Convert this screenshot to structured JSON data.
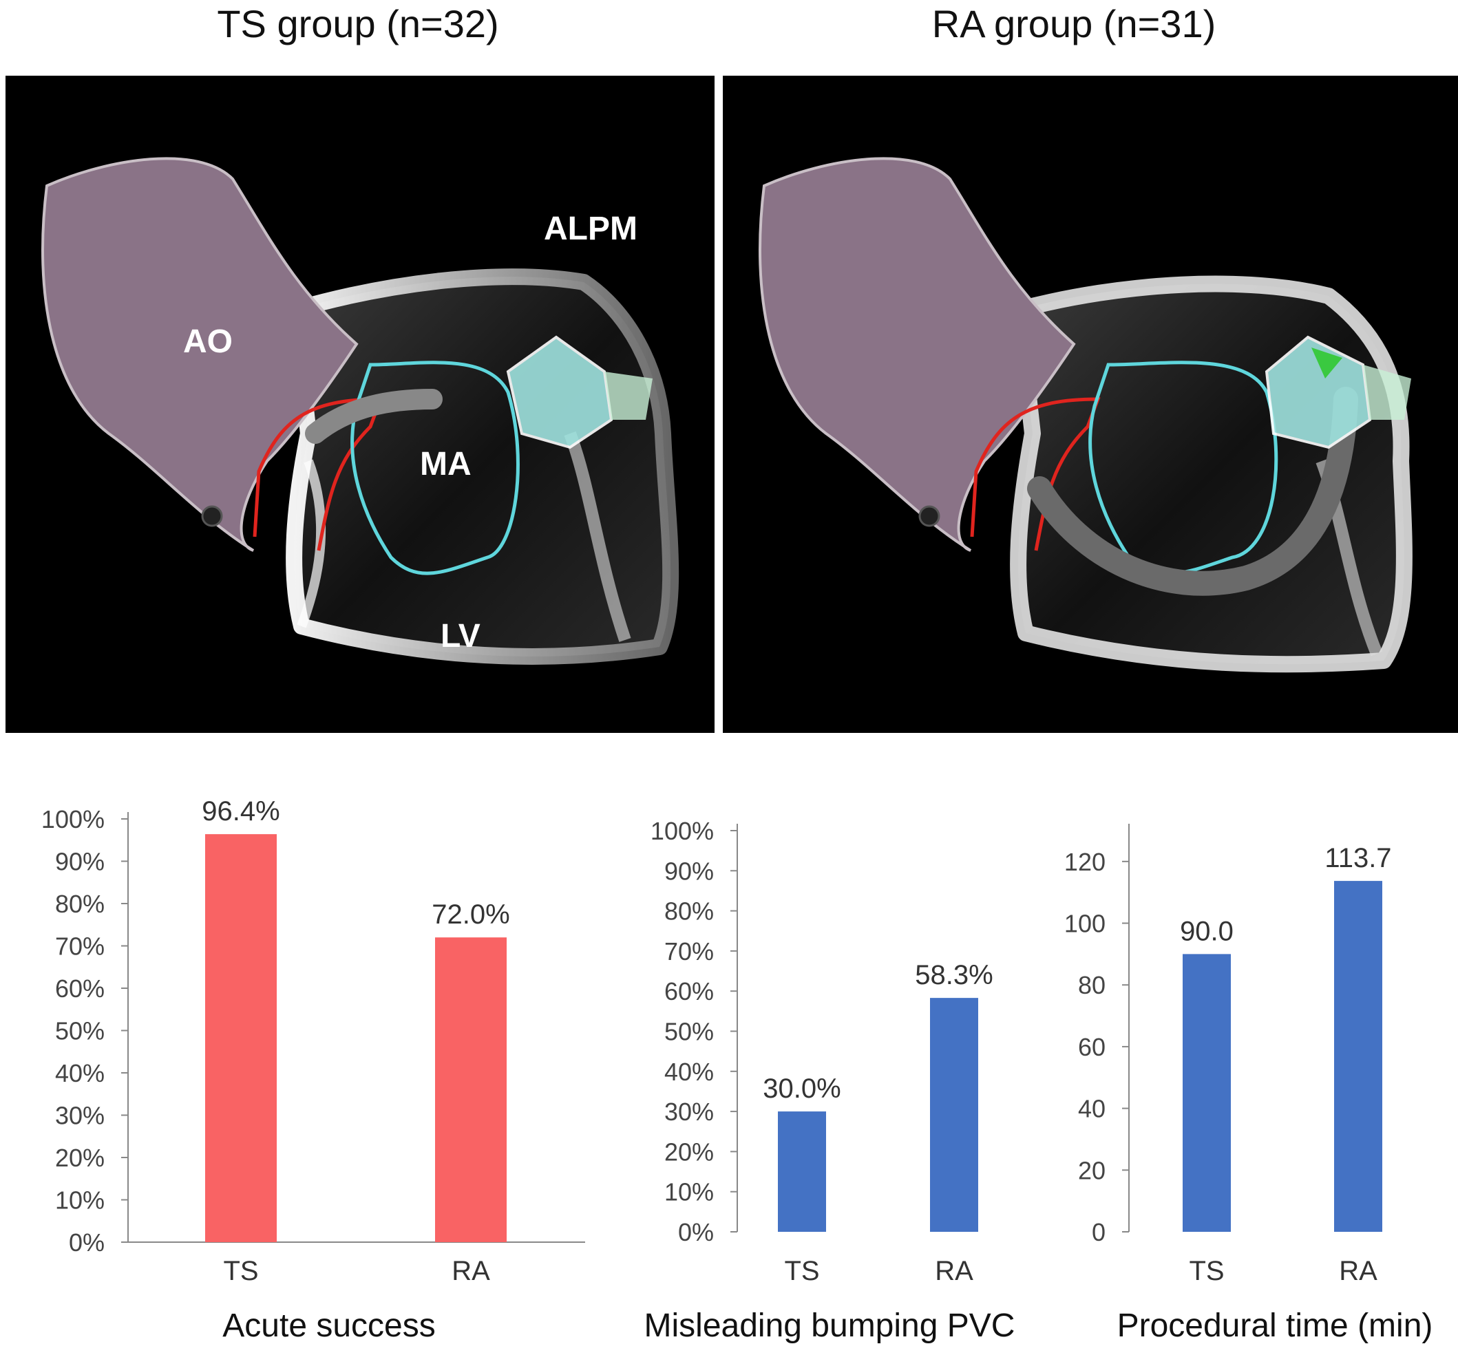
{
  "panels": {
    "left_title": "TS group (n=32)",
    "right_title": "RA group (n=31)",
    "labels": {
      "ao": "AO",
      "alpm": "ALPM",
      "ma": "MA",
      "lv": "LV"
    }
  },
  "colors": {
    "red_bar": "#f96364",
    "blue_bar": "#4472c4",
    "aorta": "#8a7387",
    "annulus": "#5fd6dc",
    "line_red": "#e0241e"
  },
  "chart_data": [
    {
      "type": "bar",
      "title": "Acute success",
      "categories": [
        "TS",
        "RA"
      ],
      "values": [
        96.4,
        72.0
      ],
      "value_labels": [
        "96.4%",
        "72.0%"
      ],
      "ylim": [
        0,
        100
      ],
      "yticks": [
        0,
        10,
        20,
        30,
        40,
        50,
        60,
        70,
        80,
        90,
        100
      ],
      "ytick_labels": [
        "0%",
        "10%",
        "20%",
        "30%",
        "40%",
        "50%",
        "60%",
        "70%",
        "80%",
        "90%",
        "100%"
      ],
      "color": "#f96364",
      "grid": false
    },
    {
      "type": "bar",
      "title": "Misleading bumping PVC",
      "categories": [
        "TS",
        "RA"
      ],
      "values": [
        30.0,
        58.3
      ],
      "value_labels": [
        "30.0%",
        "58.3%"
      ],
      "ylim": [
        0,
        100
      ],
      "yticks": [
        0,
        10,
        20,
        30,
        40,
        50,
        60,
        70,
        80,
        90,
        100
      ],
      "ytick_labels": [
        "0%",
        "10%",
        "20%",
        "30%",
        "40%",
        "50%",
        "60%",
        "70%",
        "80%",
        "90%",
        "100%"
      ],
      "color": "#4472c4",
      "grid": false
    },
    {
      "type": "bar",
      "title": "Procedural time (min)",
      "categories": [
        "TS",
        "RA"
      ],
      "values": [
        90.0,
        113.7
      ],
      "value_labels": [
        "90.0",
        "113.7"
      ],
      "ylim": [
        0,
        130
      ],
      "yticks": [
        0,
        20,
        40,
        60,
        80,
        100,
        120
      ],
      "ytick_labels": [
        "0",
        "20",
        "40",
        "60",
        "80",
        "100",
        "120"
      ],
      "color": "#4472c4",
      "grid": false
    }
  ]
}
